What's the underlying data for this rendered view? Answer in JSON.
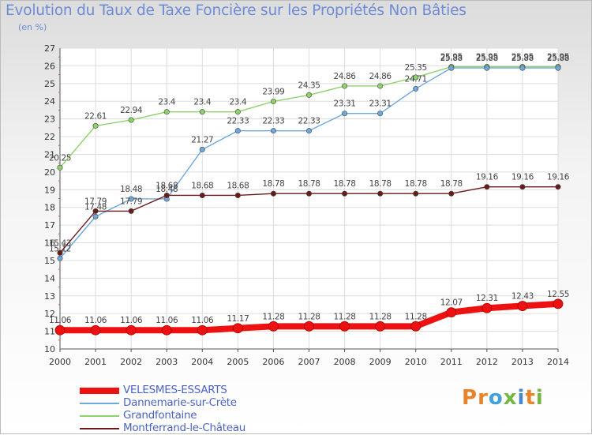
{
  "title": "Evolution du Taux de Taxe Foncière sur les Propriétés Non Bâties",
  "unit_label": "(en %)",
  "logo": {
    "text": "Proxiti",
    "letters": [
      "P",
      "r",
      "o",
      "x",
      "i",
      "t",
      "i"
    ],
    "colors": [
      "#e9832a",
      "#e9832a",
      "#43a0d8",
      "#74b743",
      "#4a86c9",
      "#e9832a",
      "#74b743"
    ]
  },
  "chart_data": {
    "type": "line",
    "x": [
      "2000",
      "2001",
      "2002",
      "2003",
      "2004",
      "2005",
      "2006",
      "2007",
      "2008",
      "2009",
      "2010",
      "2011",
      "2012",
      "2013",
      "2014"
    ],
    "ylim": [
      10,
      27
    ],
    "yticks": [
      "10",
      "11",
      "12",
      "13",
      "14",
      "15",
      "16",
      "17",
      "18",
      "19",
      "20",
      "21",
      "22",
      "23",
      "24",
      "25",
      "26",
      "27"
    ],
    "grid": true,
    "legend_position": "bottom-left",
    "series": [
      {
        "name": "Grandfontaine",
        "color": "#8fd16b",
        "values": [
          20.25,
          22.61,
          22.94,
          23.4,
          23.4,
          23.4,
          23.99,
          24.35,
          24.86,
          24.86,
          25.35,
          25.95,
          25.95,
          25.95,
          25.95
        ],
        "labels": [
          "20.25",
          "22.61",
          "22.94",
          "23.4",
          "23.4",
          "23.4",
          "23.99",
          "24.35",
          "24.86",
          "24.86",
          "25.35",
          "25.95",
          "25.95",
          "25.95",
          "25.95"
        ]
      },
      {
        "name": "Dannemarie-sur-Crète",
        "color": "#6fa8dc",
        "values": [
          15.12,
          17.48,
          18.48,
          18.48,
          21.27,
          22.33,
          22.33,
          22.33,
          23.31,
          23.31,
          24.71,
          25.88,
          25.88,
          25.88,
          25.88
        ],
        "labels": [
          "15.12",
          "17.48",
          "18.48",
          "18.48",
          "21.27",
          "22.33",
          "22.33",
          "22.33",
          "23.31",
          "23.31",
          "24.71",
          "25.88",
          "25.88",
          "25.88",
          "25.88"
        ]
      },
      {
        "name": "Montferrand-le-Château",
        "color": "#6a1a1a",
        "values": [
          15.43,
          17.79,
          17.79,
          18.68,
          18.68,
          18.68,
          18.78,
          18.78,
          18.78,
          18.78,
          18.78,
          18.78,
          19.16,
          19.16,
          19.16
        ],
        "labels": [
          "15.43",
          "17.79",
          "17.79",
          "18.68",
          "18.68",
          "18.68",
          "18.78",
          "18.78",
          "18.78",
          "18.78",
          "18.78",
          "18.78",
          "19.16",
          "19.16",
          "19.16"
        ]
      },
      {
        "name": "VELESMES-ESSARTS",
        "color": "#ee1111",
        "values": [
          11.06,
          11.06,
          11.06,
          11.06,
          11.06,
          11.17,
          11.28,
          11.28,
          11.28,
          11.28,
          11.28,
          12.07,
          12.31,
          12.43,
          12.55
        ],
        "labels": [
          "11.06",
          "11.06",
          "11.06",
          "11.06",
          "11.06",
          "11.17",
          "11.28",
          "11.28",
          "11.28",
          "11.28",
          "11.28",
          "12.07",
          "12.31",
          "12.43",
          "12.55"
        ]
      }
    ],
    "legend": [
      "VELESMES-ESSARTS",
      "Dannemarie-sur-Crète",
      "Grandfontaine",
      "Montferrand-le-Château"
    ]
  }
}
